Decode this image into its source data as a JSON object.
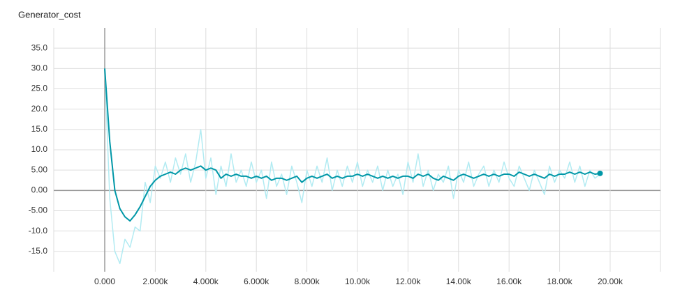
{
  "chart_data": {
    "type": "line",
    "title": "Generator_cost",
    "x": [
      0,
      200,
      400,
      600,
      800,
      1000,
      1200,
      1400,
      1600,
      1800,
      2000,
      2200,
      2400,
      2600,
      2800,
      3000,
      3200,
      3400,
      3600,
      3800,
      4000,
      4200,
      4400,
      4600,
      4800,
      5000,
      5200,
      5400,
      5600,
      5800,
      6000,
      6200,
      6400,
      6600,
      6800,
      7000,
      7200,
      7400,
      7600,
      7800,
      8000,
      8200,
      8400,
      8600,
      8800,
      9000,
      9200,
      9400,
      9600,
      9800,
      10000,
      10200,
      10400,
      10600,
      10800,
      11000,
      11200,
      11400,
      11600,
      11800,
      12000,
      12200,
      12400,
      12600,
      12800,
      13000,
      13200,
      13400,
      13600,
      13800,
      14000,
      14200,
      14400,
      14600,
      14800,
      15000,
      15200,
      15400,
      15600,
      15800,
      16000,
      16200,
      16400,
      16600,
      16800,
      17000,
      17200,
      17400,
      17600,
      17800,
      18000,
      18200,
      18400,
      18600,
      18800,
      19000,
      19200,
      19400,
      19600
    ],
    "series": [
      {
        "color": "#b2ebf2",
        "values": [
          30,
          -2,
          -15,
          -18,
          -12,
          -14,
          -9,
          -10,
          2,
          -3,
          6,
          3,
          7,
          2,
          8,
          4,
          9,
          2,
          7,
          15,
          3,
          8,
          -1,
          6,
          1,
          9,
          2,
          5,
          1,
          7,
          2,
          5,
          -2,
          7,
          1,
          4,
          -1,
          6,
          2,
          -3,
          5,
          1,
          6,
          2,
          8,
          0,
          5,
          1,
          6,
          2,
          7,
          1,
          5,
          2,
          6,
          0,
          5,
          1,
          4,
          -1,
          7,
          2,
          9,
          1,
          5,
          0,
          4,
          2,
          6,
          -2,
          5,
          2,
          7,
          1,
          4,
          6,
          1,
          5,
          2,
          7,
          3,
          1,
          6,
          3,
          0,
          5,
          2,
          -1,
          6,
          2,
          5,
          3,
          7,
          2,
          6,
          1,
          5,
          3,
          4
        ]
      },
      {
        "color": "#0097a7",
        "values": [
          30,
          12,
          0,
          -4.5,
          -6.5,
          -7.5,
          -6,
          -4,
          -1.5,
          1,
          2.5,
          3.5,
          4,
          4.5,
          4,
          5,
          5.5,
          5,
          5.5,
          6,
          5,
          5.5,
          5,
          3,
          4,
          3.5,
          4,
          3.5,
          3.5,
          3,
          3.5,
          3,
          3.5,
          2.5,
          3,
          3,
          2.5,
          3,
          3.5,
          2,
          3,
          3.5,
          3,
          3.5,
          4,
          3,
          3.5,
          3,
          3.5,
          3.5,
          4,
          3.5,
          4,
          3.5,
          3,
          3.5,
          3,
          3.5,
          3,
          3.5,
          3.5,
          3,
          4,
          3.5,
          4,
          3,
          2.5,
          3.5,
          3,
          2.5,
          3.5,
          4,
          3.5,
          3,
          3.5,
          4,
          3.5,
          4,
          3.5,
          4,
          4,
          3.5,
          4.5,
          4,
          3.5,
          4,
          3.5,
          3,
          4,
          3.5,
          4,
          4,
          4.5,
          4,
          4.5,
          4,
          4.5,
          4,
          4.2
        ]
      }
    ],
    "xlim": [
      -2017,
      21990
    ],
    "ylim": [
      -20,
      40
    ],
    "xticks": [
      {
        "value": 0,
        "label": "0.000"
      },
      {
        "value": 2000,
        "label": "2.000k"
      },
      {
        "value": 4000,
        "label": "4.000k"
      },
      {
        "value": 6000,
        "label": "6.000k"
      },
      {
        "value": 8000,
        "label": "8.000k"
      },
      {
        "value": 10000,
        "label": "10.00k"
      },
      {
        "value": 12000,
        "label": "12.00k"
      },
      {
        "value": 14000,
        "label": "14.00k"
      },
      {
        "value": 16000,
        "label": "16.00k"
      },
      {
        "value": 18000,
        "label": "18.00k"
      },
      {
        "value": 20000,
        "label": "20.00k"
      }
    ],
    "yticks": [
      {
        "value": -15,
        "label": "-15.0"
      },
      {
        "value": -10,
        "label": "-10.0"
      },
      {
        "value": -5,
        "label": "-5.00"
      },
      {
        "value": 0,
        "label": "0.00"
      },
      {
        "value": 5,
        "label": "5.00"
      },
      {
        "value": 10,
        "label": "10.0"
      },
      {
        "value": 15,
        "label": "15.0"
      },
      {
        "value": 20,
        "label": "20.0"
      },
      {
        "value": 25,
        "label": "25.0"
      },
      {
        "value": 30,
        "label": "30.0"
      },
      {
        "value": 35,
        "label": "35.0"
      }
    ],
    "grid": true
  }
}
